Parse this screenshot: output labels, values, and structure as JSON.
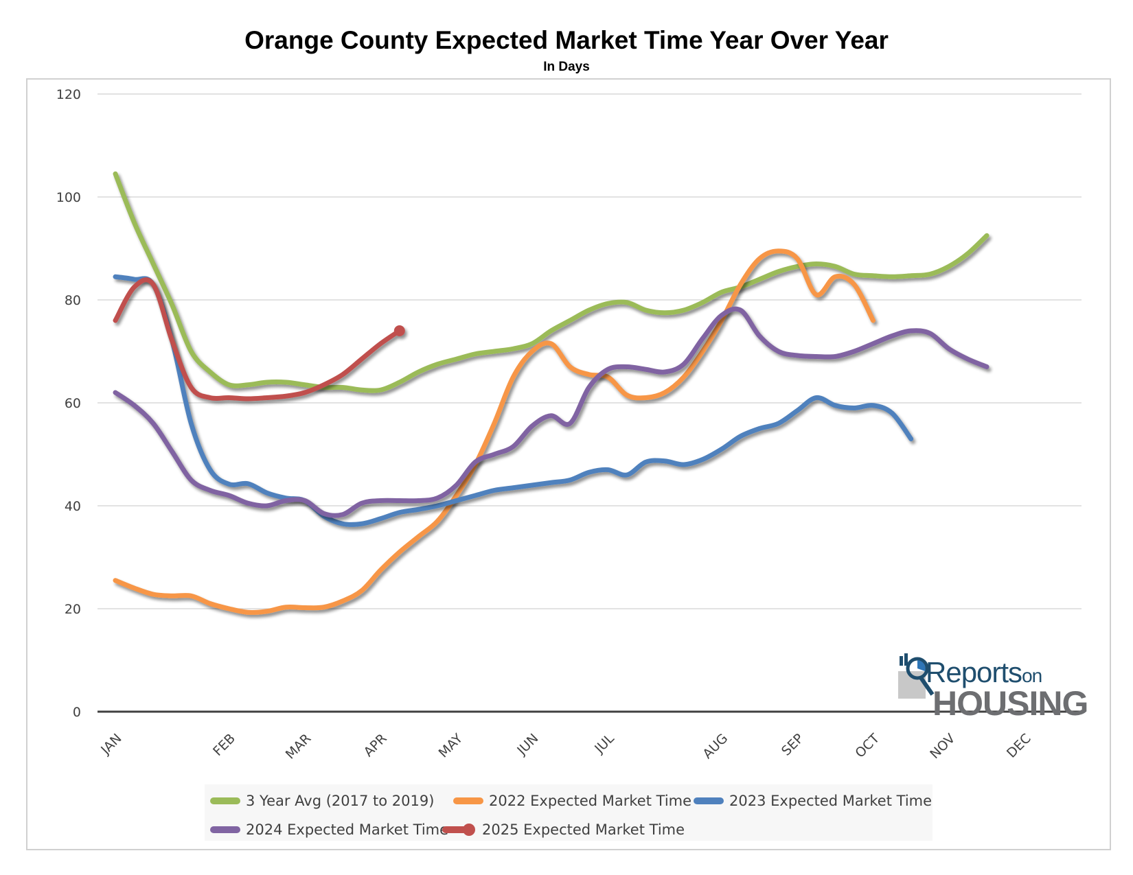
{
  "title": "Orange County Expected Market Time Year Over Year",
  "subtitle": "In Days",
  "logo": {
    "top": "Reports",
    "top_suffix": "on",
    "bottom": "HOUSING"
  },
  "chart_data": {
    "type": "line",
    "title": "Orange County Expected Market Time Year Over Year",
    "subtitle": "In Days",
    "xlabel": "",
    "ylabel": "",
    "ylim": [
      0,
      120
    ],
    "yticks": [
      0,
      20,
      40,
      60,
      80,
      100,
      120
    ],
    "grid": true,
    "legend_position": "bottom",
    "x_tick_labels": [
      {
        "label": "JAN",
        "x": 0
      },
      {
        "label": "FEB",
        "x": 3
      },
      {
        "label": "MAR",
        "x": 5
      },
      {
        "label": "APR",
        "x": 7
      },
      {
        "label": "MAY",
        "x": 9
      },
      {
        "label": "JUN",
        "x": 11
      },
      {
        "label": "JUL",
        "x": 13
      },
      {
        "label": "AUG",
        "x": 16
      },
      {
        "label": "SEP",
        "x": 18
      },
      {
        "label": "OCT",
        "x": 20
      },
      {
        "label": "NOV",
        "x": 22
      },
      {
        "label": "DEC",
        "x": 24
      }
    ],
    "x": [
      0,
      0.5,
      1,
      1.5,
      2,
      2.5,
      3,
      3.5,
      4,
      4.5,
      5,
      5.5,
      6,
      6.5,
      7,
      7.5,
      8,
      8.5,
      9,
      9.5,
      10,
      10.5,
      11,
      11.5,
      12,
      12.5,
      13,
      13.5,
      14,
      14.5,
      15,
      15.5,
      16,
      16.5,
      17,
      17.5,
      18,
      18.5,
      19,
      19.5,
      20,
      20.5,
      21,
      21.5,
      22,
      22.5,
      23,
      23.5,
      24,
      24.5,
      25
    ],
    "series": [
      {
        "name": "3 Year Avg (2017 to 2019)",
        "color": "#9bbb59",
        "values": [
          104.5,
          95,
          87,
          79,
          70,
          66,
          63.5,
          63.5,
          64,
          64,
          63.5,
          63,
          63,
          62.5,
          62.5,
          64,
          66,
          67.5,
          68.5,
          69.5,
          70,
          70.5,
          71.5,
          74,
          76,
          78,
          79.3,
          79.5,
          78,
          77.5,
          78,
          79.5,
          81.5,
          82.5,
          84,
          85.5,
          86.5,
          87,
          86.5,
          85,
          84.7,
          84.5,
          84.7,
          85,
          86.5,
          89,
          92.5,
          null,
          null,
          null,
          null
        ]
      },
      {
        "name": "2022 Expected Market Time",
        "color": "#f79646",
        "values": [
          25.5,
          24,
          22.8,
          22.5,
          22.5,
          21,
          20,
          19.3,
          19.5,
          20.3,
          20.2,
          20.3,
          21.5,
          23.5,
          27.5,
          31,
          34,
          37,
          42,
          48,
          56,
          65,
          70,
          71.5,
          67,
          65.5,
          65,
          61.5,
          61,
          62,
          65,
          70,
          76,
          83,
          88,
          89.5,
          88,
          81,
          84.5,
          83,
          76,
          null,
          null,
          null,
          null,
          null,
          null,
          null,
          null,
          null,
          null
        ]
      },
      {
        "name": "2023 Expected Market Time",
        "color": "#4f81bd",
        "values": [
          84.5,
          84,
          83,
          72,
          56,
          47,
          44.2,
          44.3,
          42.5,
          41.5,
          41,
          38,
          36.5,
          36.5,
          37.5,
          38.7,
          39.3,
          40,
          41,
          42,
          43,
          43.5,
          44,
          44.5,
          45,
          46.5,
          47,
          46,
          48.5,
          48.7,
          48,
          49,
          51,
          53.5,
          55,
          56,
          58.5,
          61,
          59.5,
          59,
          59.5,
          58,
          53,
          null,
          null,
          null,
          null,
          null,
          null,
          null,
          null
        ]
      },
      {
        "name": "2024 Expected Market Time",
        "color": "#8064a2",
        "values": [
          62,
          59.5,
          56,
          50.5,
          45,
          43,
          42,
          40.5,
          40,
          41,
          41,
          38.5,
          38.3,
          40.5,
          41,
          41,
          41,
          41.5,
          44,
          48.5,
          50,
          51.5,
          55.5,
          57.5,
          56,
          63,
          66.5,
          67,
          66.5,
          66,
          67.5,
          72.5,
          77,
          78,
          73,
          70,
          69.2,
          69,
          69,
          70,
          71.5,
          73,
          74,
          73.5,
          70.5,
          68.5,
          67,
          null,
          null,
          null,
          null
        ]
      },
      {
        "name": "2025 Expected Market Time",
        "color": "#c0504d",
        "marker_last": true,
        "values": [
          76,
          82.5,
          83,
          72,
          63,
          61,
          61,
          60.8,
          61,
          61.3,
          62,
          63.5,
          65.5,
          68.5,
          71.5,
          74,
          null,
          null,
          null,
          null,
          null,
          null,
          null,
          null,
          null,
          null,
          null,
          null,
          null,
          null,
          null,
          null,
          null,
          null,
          null,
          null,
          null,
          null,
          null,
          null,
          null,
          null,
          null,
          null,
          null,
          null,
          null,
          null,
          null,
          null,
          null
        ]
      }
    ]
  },
  "legend": [
    {
      "label": "3 Year Avg (2017 to 2019)",
      "color": "#9bbb59"
    },
    {
      "label": "2022 Expected Market Time",
      "color": "#f79646"
    },
    {
      "label": "2023 Expected Market Time",
      "color": "#4f81bd"
    },
    {
      "label": "2024 Expected Market Time",
      "color": "#8064a2"
    },
    {
      "label": "2025 Expected Market Time",
      "color": "#c0504d",
      "marker": true
    }
  ]
}
